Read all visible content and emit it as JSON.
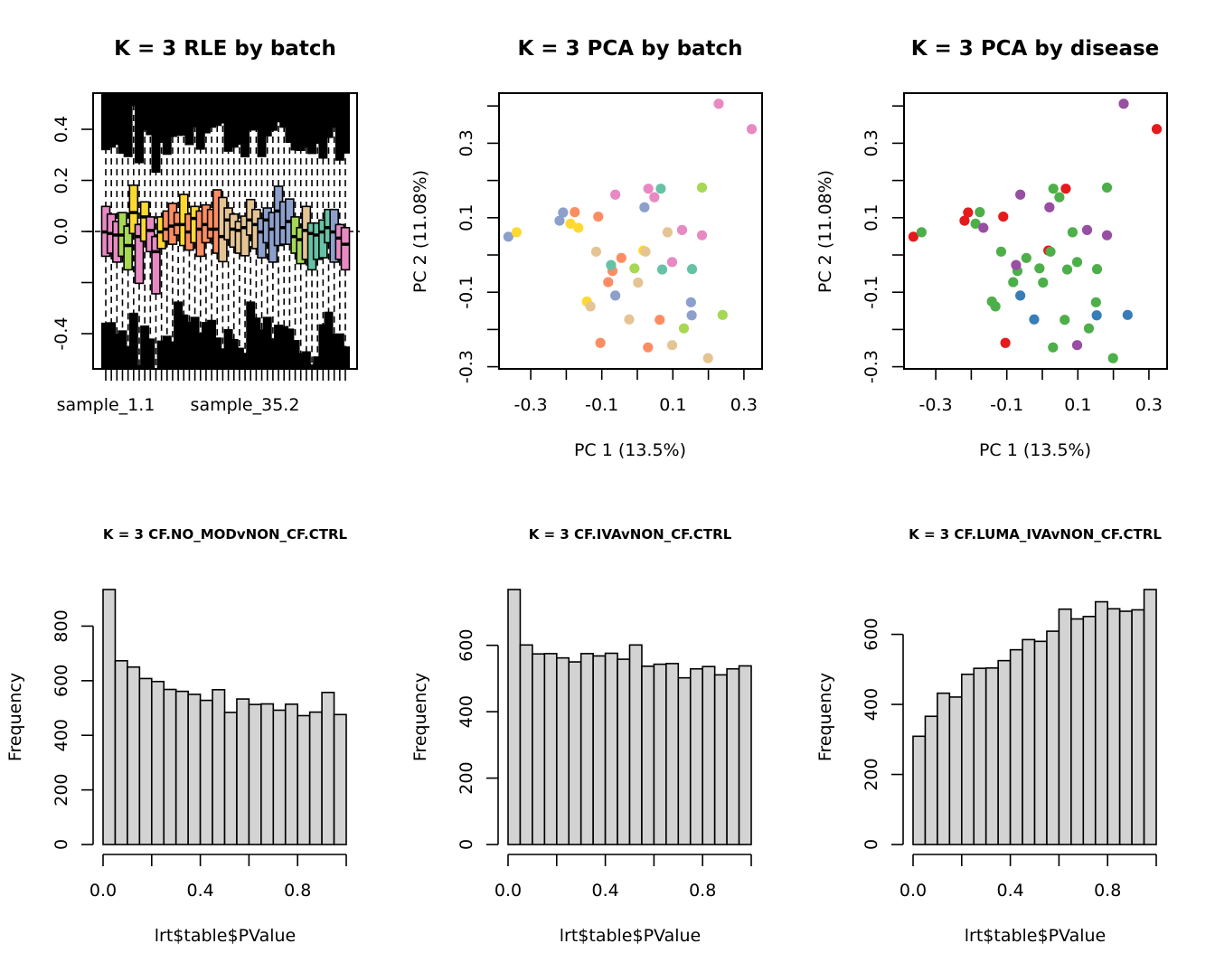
{
  "colors": {
    "batch": {
      "teal": "#66C2A5",
      "orange": "#FC8D62",
      "blue": "#8DA0CB",
      "pink": "#E78AC3",
      "green": "#A6D854",
      "yellow": "#FFD92F",
      "tan": "#E5C494"
    },
    "disease": {
      "red": "#E41A1C",
      "blue": "#377EB8",
      "green": "#4DAF4A",
      "purple": "#984EA3"
    },
    "hist_fill": "#D3D3D3"
  },
  "chart_data": [
    {
      "type": "boxplot",
      "title": "K = 3 RLE by batch",
      "xlabel": "",
      "ylabel": "",
      "ylim": [
        -0.54,
        0.54
      ],
      "yticks": [
        -0.4,
        -0.2,
        0.0,
        0.2,
        0.4
      ],
      "ytick_labels": [
        "-0.4",
        "",
        "0.0",
        "0.2",
        "0.4"
      ],
      "xtick_labels_shown": [
        "sample_1.1",
        "sample_35.2"
      ],
      "reference_line": 0.0,
      "whiskers_extend_beyond_view": true,
      "boxes": [
        {
          "batch": "pink",
          "q3": 0.098,
          "median": -0.002,
          "q1": -0.097
        },
        {
          "batch": "pink",
          "q3": 0.068,
          "median": -0.008,
          "q1": -0.085
        },
        {
          "batch": "pink",
          "q3": 0.039,
          "median": -0.014,
          "q1": -0.12
        },
        {
          "batch": "green",
          "q3": 0.074,
          "median": -0.014,
          "q1": -0.097
        },
        {
          "batch": "green",
          "q3": 0.021,
          "median": -0.055,
          "q1": -0.15
        },
        {
          "batch": "yellow",
          "q3": 0.181,
          "median": 0.074,
          "q1": -0.008
        },
        {
          "batch": "pink",
          "q3": 0.027,
          "median": -0.02,
          "q1": -0.203
        },
        {
          "batch": "yellow",
          "q3": 0.116,
          "median": 0.057,
          "q1": -0.038
        },
        {
          "batch": "pink",
          "q3": 0.057,
          "median": 0.004,
          "q1": -0.079
        },
        {
          "batch": "pink",
          "q3": -0.02,
          "median": -0.079,
          "q1": -0.244
        },
        {
          "batch": "yellow",
          "q3": 0.057,
          "median": -0.002,
          "q1": -0.067
        },
        {
          "batch": "orange",
          "q3": 0.08,
          "median": 0.009,
          "q1": -0.038
        },
        {
          "batch": "orange",
          "q3": 0.11,
          "median": 0.021,
          "q1": -0.05
        },
        {
          "batch": "orange",
          "q3": 0.074,
          "median": 0.027,
          "q1": -0.014
        },
        {
          "batch": "yellow",
          "q3": 0.145,
          "median": 0.027,
          "q1": -0.055
        },
        {
          "batch": "orange",
          "q3": 0.068,
          "median": -0.002,
          "q1": -0.073
        },
        {
          "batch": "yellow",
          "q3": 0.098,
          "median": 0.051,
          "q1": -0.044
        },
        {
          "batch": "orange",
          "q3": 0.08,
          "median": 0.009,
          "q1": -0.097
        },
        {
          "batch": "orange",
          "q3": 0.104,
          "median": 0.027,
          "q1": -0.044
        },
        {
          "batch": "orange",
          "q3": 0.086,
          "median": 0.009,
          "q1": -0.026
        },
        {
          "batch": "orange",
          "q3": 0.163,
          "median": 0.009,
          "q1": -0.085
        },
        {
          "batch": "tan",
          "q3": 0.133,
          "median": -0.02,
          "q1": -0.118
        },
        {
          "batch": "tan",
          "q3": 0.092,
          "median": 0.045,
          "q1": -0.032
        },
        {
          "batch": "tan",
          "q3": 0.068,
          "median": 0.009,
          "q1": -0.061
        },
        {
          "batch": "tan",
          "q3": 0.039,
          "median": 0.004,
          "q1": -0.085
        },
        {
          "batch": "tan",
          "q3": 0.06,
          "median": 0.015,
          "q1": -0.095
        },
        {
          "batch": "tan",
          "q3": 0.125,
          "median": 0.045,
          "q1": -0.014
        },
        {
          "batch": "tan",
          "q3": 0.086,
          "median": 0.027,
          "q1": -0.067
        },
        {
          "batch": "blue",
          "q3": 0.051,
          "median": -0.002,
          "q1": -0.103
        },
        {
          "batch": "blue",
          "q3": 0.092,
          "median": 0.045,
          "q1": -0.044
        },
        {
          "batch": "blue",
          "q3": 0.074,
          "median": 0.009,
          "q1": -0.12
        },
        {
          "batch": "blue",
          "q3": 0.177,
          "median": 0.08,
          "q1": -0.055
        },
        {
          "batch": "blue",
          "q3": 0.116,
          "median": 0.015,
          "q1": -0.05
        },
        {
          "batch": "blue",
          "q3": 0.127,
          "median": 0.039,
          "q1": -0.05
        },
        {
          "batch": "green",
          "q3": 0.057,
          "median": -0.02,
          "q1": -0.085
        },
        {
          "batch": "green",
          "q3": 0.015,
          "median": -0.032,
          "q1": -0.126
        },
        {
          "batch": "tan",
          "q3": 0.098,
          "median": 0.004,
          "q1": -0.109
        },
        {
          "batch": "teal",
          "q3": 0.033,
          "median": -0.008,
          "q1": -0.15
        },
        {
          "batch": "teal",
          "q3": 0.033,
          "median": -0.014,
          "q1": -0.109
        },
        {
          "batch": "teal",
          "q3": 0.045,
          "median": -0.002,
          "q1": -0.103
        },
        {
          "batch": "teal",
          "q3": 0.086,
          "median": 0.015,
          "q1": -0.044
        },
        {
          "batch": "blue",
          "q3": 0.086,
          "median": -0.002,
          "q1": -0.12
        },
        {
          "batch": "pink",
          "q3": 0.027,
          "median": -0.026,
          "q1": -0.109
        },
        {
          "batch": "pink",
          "q3": 0.015,
          "median": -0.05,
          "q1": -0.15
        }
      ]
    },
    {
      "type": "scatter",
      "title": "K = 3 PCA by batch",
      "xlabel": "PC 1 (13.5%)",
      "ylabel": "PC 2 (11.08%)",
      "xlim": [
        -0.38,
        0.35
      ],
      "ylim": [
        -0.31,
        0.43
      ],
      "xticks": [
        -0.3,
        -0.2,
        -0.1,
        0.0,
        0.1,
        0.2,
        0.3
      ],
      "xtick_labels": [
        "-0.3",
        "",
        "-0.1",
        "",
        "0.1",
        "",
        "0.3"
      ],
      "yticks": [
        -0.3,
        -0.2,
        -0.1,
        0.0,
        0.1,
        0.2,
        0.3,
        0.4
      ],
      "ytick_labels": [
        "-0.3",
        "",
        "-0.1",
        "",
        "0.1",
        "",
        "0.3",
        ""
      ],
      "color_by": "batch"
    },
    {
      "type": "scatter",
      "title": "K = 3 PCA by disease",
      "xlabel": "PC 1 (13.5%)",
      "ylabel": "PC 2 (11.08%)",
      "xlim": [
        -0.38,
        0.35
      ],
      "ylim": [
        -0.31,
        0.43
      ],
      "xticks": [
        -0.3,
        -0.2,
        -0.1,
        0.0,
        0.1,
        0.2,
        0.3
      ],
      "xtick_labels": [
        "-0.3",
        "",
        "-0.1",
        "",
        "0.1",
        "",
        "0.3"
      ],
      "yticks": [
        -0.3,
        -0.2,
        -0.1,
        0.0,
        0.1,
        0.2,
        0.3,
        0.4
      ],
      "ytick_labels": [
        "-0.3",
        "",
        "-0.1",
        "",
        "0.1",
        "",
        "0.3",
        ""
      ],
      "color_by": "disease"
    },
    {
      "type": "bar",
      "title": "K = 3 CF.NO_MODvNON_CF.CTRL",
      "xlabel": "lrt$table$PValue",
      "ylabel": "Frequency",
      "bin_edges_start": 0.0,
      "bin_width": 0.05,
      "values": [
        934,
        673,
        650,
        608,
        597,
        568,
        561,
        550,
        528,
        567,
        484,
        533,
        513,
        515,
        492,
        514,
        472,
        485,
        557,
        476
      ],
      "xticks": [
        0.0,
        0.2,
        0.4,
        0.6,
        0.8,
        1.0
      ],
      "xtick_labels": [
        "0.0",
        "",
        "0.4",
        "",
        "0.8",
        ""
      ],
      "yticks": [
        0,
        200,
        400,
        600,
        800
      ],
      "ytick_labels": [
        "0",
        "200",
        "400",
        "600",
        "800"
      ],
      "ylim": [
        0,
        934
      ]
    },
    {
      "type": "bar",
      "title": "K = 3 CF.IVAvNON_CF.CTRL",
      "xlabel": "lrt$table$PValue",
      "ylabel": "Frequency",
      "bin_edges_start": 0.0,
      "bin_width": 0.05,
      "values": [
        768,
        601,
        574,
        575,
        562,
        550,
        575,
        568,
        576,
        558,
        601,
        537,
        543,
        545,
        502,
        529,
        536,
        511,
        529,
        538
      ],
      "xticks": [
        0.0,
        0.2,
        0.4,
        0.6,
        0.8,
        1.0
      ],
      "xtick_labels": [
        "0.0",
        "",
        "0.4",
        "",
        "0.8",
        ""
      ],
      "yticks": [
        0,
        200,
        400,
        600
      ],
      "ytick_labels": [
        "0",
        "200",
        "400",
        "600"
      ],
      "ylim": [
        0,
        768
      ]
    },
    {
      "type": "bar",
      "title": "K = 3 CF.LUMA_IVAvNON_CF.CTRL",
      "xlabel": "lrt$table$PValue",
      "ylabel": "Frequency",
      "bin_edges_start": 0.0,
      "bin_width": 0.05,
      "values": [
        309,
        366,
        432,
        421,
        486,
        503,
        504,
        525,
        556,
        585,
        580,
        609,
        672,
        644,
        651,
        693,
        673,
        666,
        670,
        728
      ],
      "xticks": [
        0.0,
        0.2,
        0.4,
        0.6,
        0.8,
        1.0
      ],
      "xtick_labels": [
        "0.0",
        "",
        "0.4",
        "",
        "0.8",
        ""
      ],
      "yticks": [
        0,
        200,
        400,
        600
      ],
      "ytick_labels": [
        "0",
        "200",
        "400",
        "600"
      ],
      "ylim": [
        0,
        728
      ]
    }
  ],
  "pca_points": [
    {
      "pc1": 0.229,
      "pc2": 0.406,
      "batch": "pink",
      "disease": "purple"
    },
    {
      "pc1": 0.322,
      "pc2": 0.338,
      "batch": "pink",
      "disease": "red"
    },
    {
      "pc1": -0.062,
      "pc2": 0.162,
      "batch": "pink",
      "disease": "purple"
    },
    {
      "pc1": 0.031,
      "pc2": 0.178,
      "batch": "pink",
      "disease": "green"
    },
    {
      "pc1": 0.066,
      "pc2": 0.178,
      "batch": "teal",
      "disease": "red"
    },
    {
      "pc1": 0.048,
      "pc2": 0.155,
      "batch": "pink",
      "disease": "green"
    },
    {
      "pc1": 0.182,
      "pc2": 0.181,
      "batch": "green",
      "disease": "green"
    },
    {
      "pc1": 0.02,
      "pc2": 0.128,
      "batch": "blue",
      "disease": "purple"
    },
    {
      "pc1": -0.209,
      "pc2": 0.114,
      "batch": "blue",
      "disease": "red"
    },
    {
      "pc1": -0.176,
      "pc2": 0.115,
      "batch": "orange",
      "disease": "green"
    },
    {
      "pc1": -0.219,
      "pc2": 0.092,
      "batch": "blue",
      "disease": "red"
    },
    {
      "pc1": -0.188,
      "pc2": 0.084,
      "batch": "yellow",
      "disease": "green"
    },
    {
      "pc1": -0.166,
      "pc2": 0.073,
      "batch": "yellow",
      "disease": "purple"
    },
    {
      "pc1": -0.11,
      "pc2": 0.103,
      "batch": "orange",
      "disease": "red"
    },
    {
      "pc1": -0.363,
      "pc2": 0.049,
      "batch": "blue",
      "disease": "red"
    },
    {
      "pc1": -0.34,
      "pc2": 0.061,
      "batch": "yellow",
      "disease": "green"
    },
    {
      "pc1": 0.085,
      "pc2": 0.061,
      "batch": "tan",
      "disease": "green"
    },
    {
      "pc1": 0.126,
      "pc2": 0.067,
      "batch": "pink",
      "disease": "purple"
    },
    {
      "pc1": 0.182,
      "pc2": 0.053,
      "batch": "pink",
      "disease": "purple"
    },
    {
      "pc1": -0.116,
      "pc2": 0.009,
      "batch": "tan",
      "disease": "green"
    },
    {
      "pc1": 0.017,
      "pc2": 0.012,
      "batch": "yellow",
      "disease": "red"
    },
    {
      "pc1": 0.023,
      "pc2": 0.009,
      "batch": "tan",
      "disease": "green"
    },
    {
      "pc1": -0.045,
      "pc2": -0.008,
      "batch": "orange",
      "disease": "green"
    },
    {
      "pc1": -0.07,
      "pc2": -0.043,
      "batch": "orange",
      "disease": "green"
    },
    {
      "pc1": -0.074,
      "pc2": -0.027,
      "batch": "teal",
      "disease": "purple"
    },
    {
      "pc1": -0.008,
      "pc2": -0.036,
      "batch": "green",
      "disease": "green"
    },
    {
      "pc1": 0.098,
      "pc2": -0.019,
      "batch": "pink",
      "disease": "green"
    },
    {
      "pc1": 0.07,
      "pc2": -0.039,
      "batch": "teal",
      "disease": "green"
    },
    {
      "pc1": 0.154,
      "pc2": -0.038,
      "batch": "teal",
      "disease": "green"
    },
    {
      "pc1": -0.082,
      "pc2": -0.073,
      "batch": "orange",
      "disease": "green"
    },
    {
      "pc1": 0.002,
      "pc2": -0.074,
      "batch": "tan",
      "disease": "green"
    },
    {
      "pc1": -0.062,
      "pc2": -0.109,
      "batch": "blue",
      "disease": "blue"
    },
    {
      "pc1": -0.142,
      "pc2": -0.125,
      "batch": "yellow",
      "disease": "green"
    },
    {
      "pc1": -0.132,
      "pc2": -0.138,
      "batch": "tan",
      "disease": "green"
    },
    {
      "pc1": 0.151,
      "pc2": -0.127,
      "batch": "blue",
      "disease": "green"
    },
    {
      "pc1": 0.153,
      "pc2": -0.162,
      "batch": "blue",
      "disease": "blue"
    },
    {
      "pc1": 0.24,
      "pc2": -0.161,
      "batch": "green",
      "disease": "blue"
    },
    {
      "pc1": -0.023,
      "pc2": -0.173,
      "batch": "tan",
      "disease": "blue"
    },
    {
      "pc1": 0.063,
      "pc2": -0.174,
      "batch": "orange",
      "disease": "green"
    },
    {
      "pc1": 0.131,
      "pc2": -0.197,
      "batch": "green",
      "disease": "green"
    },
    {
      "pc1": -0.104,
      "pc2": -0.236,
      "batch": "orange",
      "disease": "red"
    },
    {
      "pc1": 0.03,
      "pc2": -0.248,
      "batch": "orange",
      "disease": "green"
    },
    {
      "pc1": 0.098,
      "pc2": -0.242,
      "batch": "tan",
      "disease": "purple"
    },
    {
      "pc1": 0.199,
      "pc2": -0.277,
      "batch": "tan",
      "disease": "green"
    }
  ]
}
